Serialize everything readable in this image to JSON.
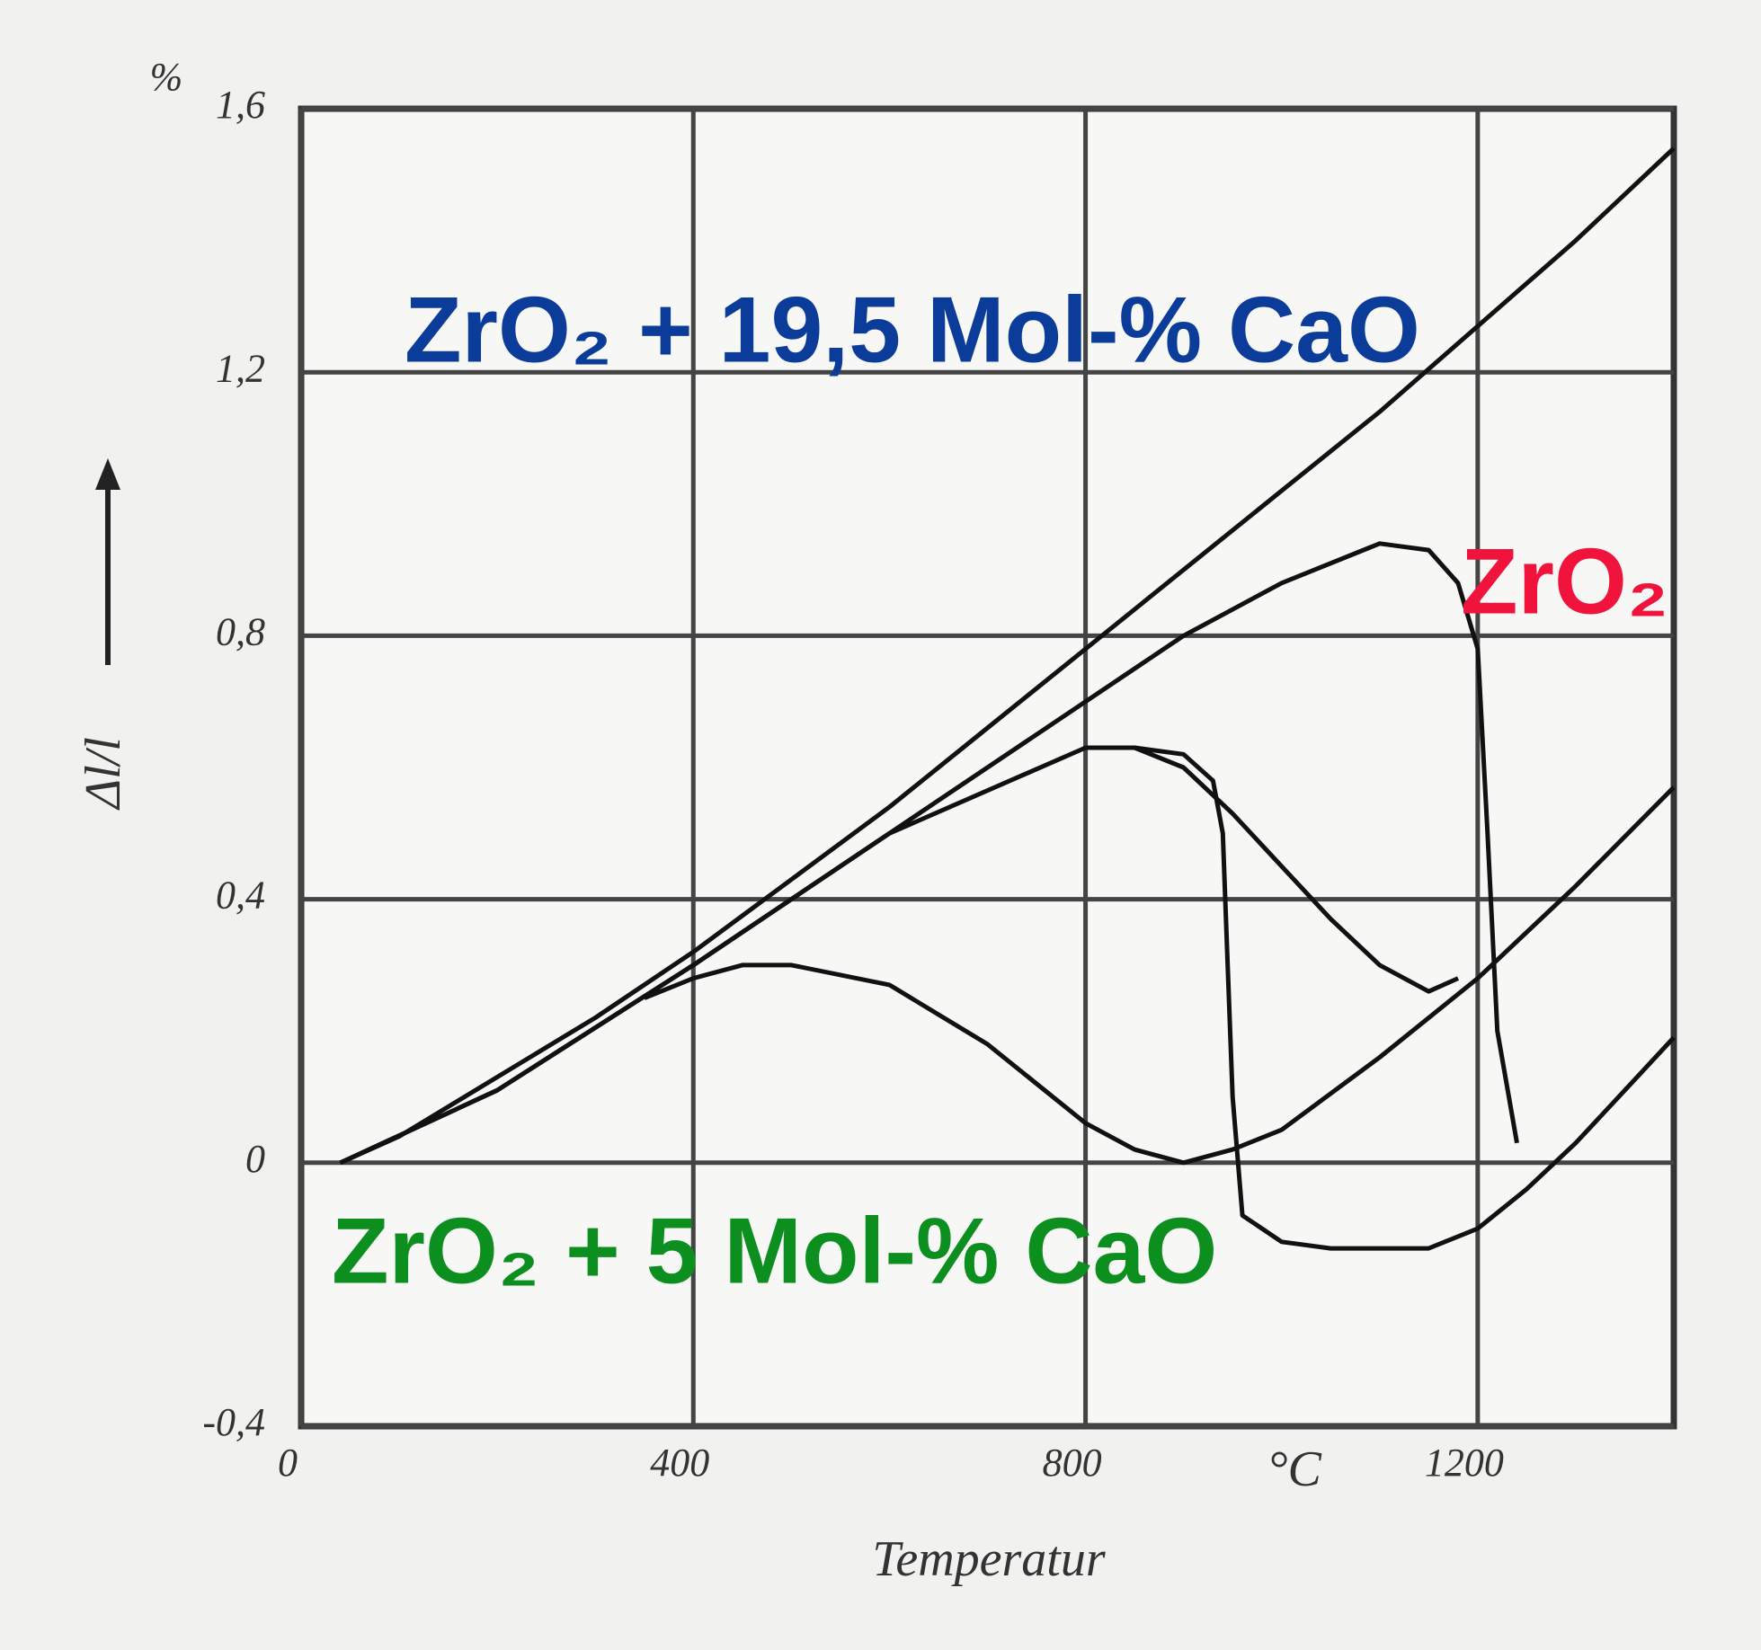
{
  "chart_data": {
    "type": "line",
    "y_label": "Δl/l",
    "y_unit": "%",
    "x_label": "Temperatur",
    "x_unit": "°C",
    "xlim": [
      0,
      1400
    ],
    "ylim": [
      -0.4,
      1.6
    ],
    "xticks": [
      0,
      400,
      800,
      1200
    ],
    "yticks": [
      {
        "value": -0.4,
        "label": "-0,4"
      },
      0,
      {
        "value": 0.4,
        "label": "0,4"
      },
      {
        "value": 0.8,
        "label": "0,8"
      },
      {
        "value": 1.2,
        "label": "1,2"
      },
      {
        "value": 1.6,
        "label": "1,6"
      }
    ],
    "grid": true,
    "series": [
      {
        "color": "#111111",
        "x": [
          40,
          100,
          200,
          300,
          400,
          500,
          600,
          700,
          800,
          900,
          1000,
          1100,
          1200,
          1300,
          1400
        ],
        "values": [
          0,
          0.04,
          0.13,
          0.22,
          0.32,
          0.43,
          0.54,
          0.66,
          0.78,
          0.9,
          1.02,
          1.14,
          1.27,
          1.4,
          1.54
        ]
      },
      {
        "color": "#111111",
        "x": [
          40,
          200,
          400,
          600,
          800,
          900,
          1000,
          1100,
          1150,
          1180,
          1200,
          1210,
          1220,
          1240,
          1400,
          1400,
          1350,
          1300,
          1250,
          1200,
          1150,
          1100,
          1050,
          1000,
          960,
          950,
          945,
          940,
          930,
          900,
          850,
          800
        ],
        "values": [
          0,
          0.11,
          0.3,
          0.5,
          0.7,
          0.8,
          0.88,
          0.94,
          0.93,
          0.88,
          0.78,
          0.5,
          0.2,
          0.03,
          null,
          0.19,
          0.11,
          0.03,
          -0.04,
          -0.1,
          -0.13,
          -0.13,
          -0.13,
          -0.12,
          -0.08,
          0.1,
          0.3,
          0.5,
          0.58,
          0.62,
          0.63,
          0.63
        ]
      },
      {
        "color": "#111111",
        "x": [
          40,
          200,
          400,
          600,
          800,
          850,
          900,
          950,
          1000,
          1050,
          1100,
          1150,
          1180,
          1400,
          1400,
          1300,
          1200,
          1100,
          1000,
          950,
          900,
          850,
          800,
          700,
          600,
          500,
          450,
          400,
          350
        ],
        "values": [
          0,
          0.11,
          0.3,
          0.5,
          0.63,
          0.63,
          0.6,
          0.53,
          0.45,
          0.37,
          0.3,
          0.26,
          0.28,
          null,
          0.57,
          0.42,
          0.28,
          0.16,
          0.05,
          0.02,
          0,
          0.02,
          0.06,
          0.18,
          0.27,
          0.3,
          0.3,
          0.28,
          0.25
        ]
      }
    ],
    "annotations": [
      {
        "text": "ZrO₂ + 19,5 Mol-% CaO",
        "color": "#0b3c9a"
      },
      {
        "text": "ZrO₂",
        "color": "#f0143c"
      },
      {
        "text": "ZrO₂ + 5 Mol-% CaO",
        "color": "#0c8f1e"
      }
    ]
  }
}
